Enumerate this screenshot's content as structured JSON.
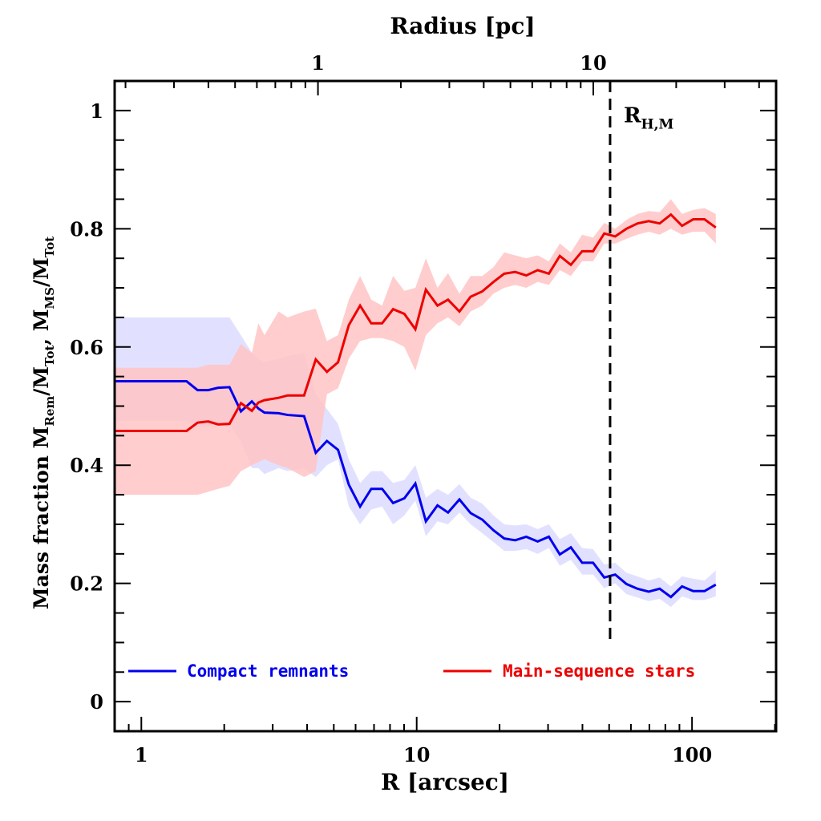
{
  "chart_data": {
    "type": "line",
    "x_scale": "log",
    "xlabel": "R [arcsec]",
    "ylabel_parts": [
      "Mass fraction  M",
      "Rem",
      "/M",
      "Tot",
      ", M",
      "MS",
      "/M",
      "Tot"
    ],
    "top_xlabel": "Radius [pc]",
    "xlim": [
      0.8,
      202
    ],
    "ylim": [
      -0.05,
      1.05
    ],
    "x_ticks": [
      {
        "value": 1,
        "label": "1"
      },
      {
        "value": 10,
        "label": "10"
      },
      {
        "value": 100,
        "label": "100"
      }
    ],
    "y_ticks": [
      {
        "value": 0,
        "label": "0"
      },
      {
        "value": 0.2,
        "label": "0.2"
      },
      {
        "value": 0.4,
        "label": "0.4"
      },
      {
        "value": 0.6,
        "label": "0.6"
      },
      {
        "value": 0.8,
        "label": "0.8"
      },
      {
        "value": 1,
        "label": "1"
      }
    ],
    "top_ticks": [
      {
        "value": 1,
        "label": "1"
      },
      {
        "value": 10,
        "label": "10"
      }
    ],
    "arcsec_per_pc": 4.38,
    "annotation": {
      "label": "R",
      "subscript": "H,M",
      "x": 50.4,
      "style": "dashed"
    },
    "legend_position": "bottom",
    "series": [
      {
        "name": "Compact remnants",
        "color": "#0000ee",
        "band_color": "#dcdcff",
        "x": [
          0.8,
          1.46,
          1.6,
          1.75,
          1.9,
          2.09,
          2.3,
          2.52,
          2.66,
          2.8,
          3.15,
          3.4,
          3.9,
          4.3,
          4.72,
          5.18,
          5.67,
          6.23,
          6.84,
          7.49,
          8.21,
          9.02,
          9.89,
          10.8,
          11.9,
          13.0,
          14.3,
          15.7,
          17.3,
          19.0,
          20.8,
          22.8,
          25.0,
          27.5,
          30.2,
          33.1,
          36.3,
          39.9,
          43.7,
          48.0,
          52.6,
          57.8,
          63.4,
          69.6,
          76.3,
          83.8,
          92.0,
          101,
          111,
          122
        ],
        "y": [
          0.542,
          0.542,
          0.527,
          0.527,
          0.531,
          0.532,
          0.491,
          0.508,
          0.496,
          0.489,
          0.488,
          0.485,
          0.483,
          0.421,
          0.441,
          0.426,
          0.367,
          0.33,
          0.36,
          0.36,
          0.336,
          0.344,
          0.369,
          0.305,
          0.332,
          0.32,
          0.342,
          0.319,
          0.308,
          0.29,
          0.276,
          0.273,
          0.279,
          0.271,
          0.279,
          0.249,
          0.261,
          0.235,
          0.235,
          0.21,
          0.215,
          0.199,
          0.191,
          0.186,
          0.191,
          0.177,
          0.195,
          0.187,
          0.187,
          0.198
        ],
        "lower": [
          0.475,
          0.475,
          0.465,
          0.465,
          0.47,
          0.47,
          0.44,
          0.395,
          0.395,
          0.385,
          0.395,
          0.39,
          0.395,
          0.38,
          0.4,
          0.41,
          0.33,
          0.3,
          0.325,
          0.33,
          0.3,
          0.315,
          0.34,
          0.28,
          0.305,
          0.3,
          0.32,
          0.3,
          0.285,
          0.27,
          0.255,
          0.255,
          0.258,
          0.25,
          0.26,
          0.23,
          0.24,
          0.215,
          0.215,
          0.192,
          0.2,
          0.182,
          0.176,
          0.17,
          0.174,
          0.16,
          0.178,
          0.172,
          0.172,
          0.178
        ],
        "upper": [
          0.65,
          0.65,
          0.65,
          0.65,
          0.65,
          0.65,
          0.62,
          0.59,
          0.58,
          0.575,
          0.58,
          0.585,
          0.59,
          0.52,
          0.495,
          0.47,
          0.41,
          0.37,
          0.39,
          0.39,
          0.37,
          0.375,
          0.4,
          0.345,
          0.36,
          0.35,
          0.368,
          0.345,
          0.335,
          0.315,
          0.3,
          0.298,
          0.3,
          0.292,
          0.3,
          0.275,
          0.285,
          0.26,
          0.258,
          0.232,
          0.235,
          0.218,
          0.212,
          0.205,
          0.21,
          0.195,
          0.212,
          0.208,
          0.205,
          0.222
        ]
      },
      {
        "name": "Main-sequence stars",
        "color": "#ee0000",
        "band_color": "#ffc4c4",
        "x": [
          0.8,
          1.46,
          1.6,
          1.75,
          1.9,
          2.09,
          2.3,
          2.52,
          2.66,
          2.8,
          3.15,
          3.4,
          3.9,
          4.3,
          4.72,
          5.18,
          5.67,
          6.23,
          6.84,
          7.49,
          8.21,
          9.02,
          9.89,
          10.8,
          11.9,
          13.0,
          14.3,
          15.7,
          17.3,
          19.0,
          20.8,
          22.8,
          25.0,
          27.5,
          30.2,
          33.1,
          36.3,
          39.9,
          43.7,
          48.0,
          52.6,
          57.8,
          63.4,
          69.6,
          76.3,
          83.8,
          92.0,
          101,
          111,
          122
        ],
        "y": [
          0.458,
          0.458,
          0.472,
          0.474,
          0.469,
          0.47,
          0.505,
          0.492,
          0.506,
          0.51,
          0.514,
          0.518,
          0.518,
          0.579,
          0.558,
          0.574,
          0.637,
          0.67,
          0.64,
          0.64,
          0.664,
          0.656,
          0.63,
          0.697,
          0.67,
          0.68,
          0.66,
          0.685,
          0.694,
          0.71,
          0.724,
          0.727,
          0.721,
          0.73,
          0.724,
          0.754,
          0.739,
          0.762,
          0.762,
          0.792,
          0.787,
          0.8,
          0.809,
          0.813,
          0.809,
          0.824,
          0.805,
          0.816,
          0.816,
          0.802
        ],
        "lower": [
          0.35,
          0.35,
          0.35,
          0.355,
          0.36,
          0.365,
          0.39,
          0.4,
          0.405,
          0.41,
          0.4,
          0.395,
          0.38,
          0.39,
          0.52,
          0.53,
          0.58,
          0.61,
          0.615,
          0.615,
          0.61,
          0.6,
          0.56,
          0.62,
          0.64,
          0.65,
          0.635,
          0.66,
          0.67,
          0.69,
          0.7,
          0.705,
          0.7,
          0.71,
          0.705,
          0.73,
          0.72,
          0.745,
          0.745,
          0.775,
          0.775,
          0.783,
          0.79,
          0.795,
          0.79,
          0.8,
          0.79,
          0.795,
          0.795,
          0.775
        ],
        "upper": [
          0.565,
          0.565,
          0.565,
          0.57,
          0.57,
          0.57,
          0.605,
          0.59,
          0.64,
          0.62,
          0.66,
          0.65,
          0.66,
          0.665,
          0.61,
          0.62,
          0.68,
          0.72,
          0.68,
          0.67,
          0.72,
          0.695,
          0.7,
          0.75,
          0.7,
          0.725,
          0.69,
          0.72,
          0.72,
          0.735,
          0.76,
          0.755,
          0.75,
          0.755,
          0.745,
          0.775,
          0.76,
          0.79,
          0.785,
          0.81,
          0.8,
          0.815,
          0.825,
          0.83,
          0.828,
          0.85,
          0.825,
          0.832,
          0.835,
          0.825
        ]
      }
    ]
  }
}
